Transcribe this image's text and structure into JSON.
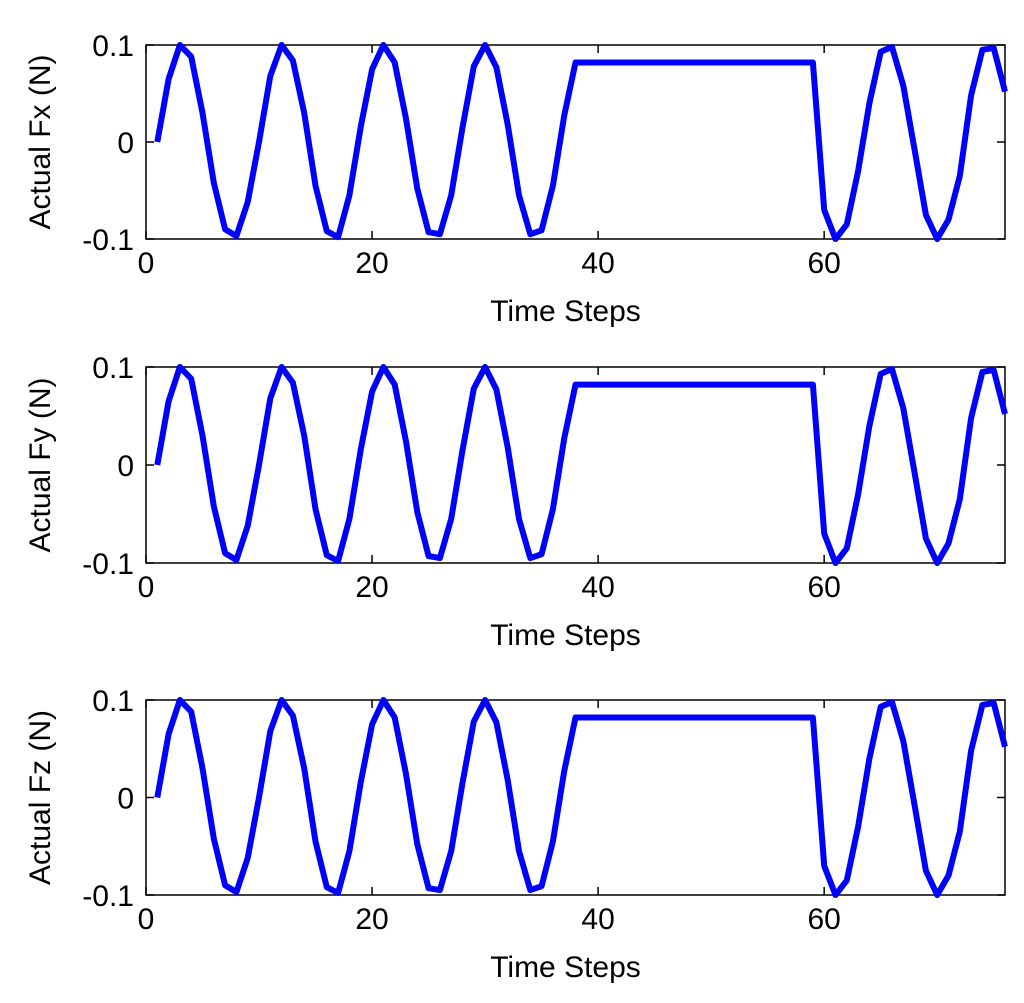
{
  "chart_data": [
    {
      "type": "line",
      "xlabel": "Time Steps",
      "ylabel": "Actual Fx (N)",
      "xlim": [
        0,
        76
      ],
      "ylim": [
        -0.1,
        0.1
      ],
      "xticks": [
        0,
        20,
        40,
        60
      ],
      "xtick_labels": [
        "0",
        "20",
        "40",
        "60"
      ],
      "yticks": [
        -0.1,
        0,
        0.1
      ],
      "ytick_labels": [
        "-0.1",
        "0",
        "0.1"
      ],
      "grid": false,
      "series": [
        {
          "color": "#0000ff",
          "x": [
            1,
            2,
            3,
            4,
            5,
            6,
            7,
            8,
            9,
            10,
            11,
            12,
            13,
            14,
            15,
            16,
            17,
            18,
            19,
            20,
            21,
            22,
            23,
            24,
            25,
            26,
            27,
            28,
            29,
            30,
            31,
            32,
            33,
            34,
            35,
            36,
            37,
            38,
            59,
            60,
            61,
            62,
            63,
            64,
            65,
            66,
            67,
            68,
            69,
            70,
            71,
            72,
            73,
            74,
            75,
            76
          ],
          "y": [
            0,
            0.065,
            0.1,
            0.088,
            0.03,
            -0.042,
            -0.09,
            -0.097,
            -0.062,
            0,
            0.068,
            0.1,
            0.084,
            0.03,
            -0.045,
            -0.092,
            -0.098,
            -0.055,
            0.016,
            0.075,
            0.1,
            0.082,
            0.024,
            -0.048,
            -0.093,
            -0.095,
            -0.055,
            0.015,
            0.078,
            0.1,
            0.077,
            0.018,
            -0.055,
            -0.095,
            -0.091,
            -0.045,
            0.027,
            0.082,
            0.082,
            -0.07,
            -0.1,
            -0.085,
            -0.03,
            0.04,
            0.093,
            0.098,
            0.058,
            -0.008,
            -0.075,
            -0.1,
            -0.08,
            -0.035,
            0.048,
            0.095,
            0.097,
            0.052
          ]
        }
      ]
    },
    {
      "type": "line",
      "xlabel": "Time Steps",
      "ylabel": "Actual Fy (N)",
      "xlim": [
        0,
        76
      ],
      "ylim": [
        -0.1,
        0.1
      ],
      "xticks": [
        0,
        20,
        40,
        60
      ],
      "xtick_labels": [
        "0",
        "20",
        "40",
        "60"
      ],
      "yticks": [
        -0.1,
        0,
        0.1
      ],
      "ytick_labels": [
        "-0.1",
        "0",
        "0.1"
      ],
      "grid": false,
      "series": [
        {
          "color": "#0000ff",
          "x": [
            1,
            2,
            3,
            4,
            5,
            6,
            7,
            8,
            9,
            10,
            11,
            12,
            13,
            14,
            15,
            16,
            17,
            18,
            19,
            20,
            21,
            22,
            23,
            24,
            25,
            26,
            27,
            28,
            29,
            30,
            31,
            32,
            33,
            34,
            35,
            36,
            37,
            38,
            59,
            60,
            61,
            62,
            63,
            64,
            65,
            66,
            67,
            68,
            69,
            70,
            71,
            72,
            73,
            74,
            75,
            76
          ],
          "y": [
            0,
            0.065,
            0.1,
            0.088,
            0.03,
            -0.042,
            -0.09,
            -0.097,
            -0.062,
            0,
            0.068,
            0.1,
            0.084,
            0.03,
            -0.045,
            -0.092,
            -0.098,
            -0.055,
            0.016,
            0.075,
            0.1,
            0.082,
            0.024,
            -0.048,
            -0.093,
            -0.095,
            -0.055,
            0.015,
            0.078,
            0.1,
            0.077,
            0.018,
            -0.055,
            -0.095,
            -0.091,
            -0.045,
            0.027,
            0.082,
            0.082,
            -0.07,
            -0.1,
            -0.085,
            -0.03,
            0.04,
            0.093,
            0.098,
            0.058,
            -0.008,
            -0.075,
            -0.1,
            -0.08,
            -0.035,
            0.048,
            0.095,
            0.097,
            0.052
          ]
        }
      ]
    },
    {
      "type": "line",
      "xlabel": "Time Steps",
      "ylabel": "Actual Fz (N)",
      "xlim": [
        0,
        76
      ],
      "ylim": [
        -0.1,
        0.1
      ],
      "xticks": [
        0,
        20,
        40,
        60
      ],
      "xtick_labels": [
        "0",
        "20",
        "40",
        "60"
      ],
      "yticks": [
        -0.1,
        0,
        0.1
      ],
      "ytick_labels": [
        "-0.1",
        "0",
        "0.1"
      ],
      "grid": false,
      "series": [
        {
          "color": "#0000ff",
          "x": [
            1,
            2,
            3,
            4,
            5,
            6,
            7,
            8,
            9,
            10,
            11,
            12,
            13,
            14,
            15,
            16,
            17,
            18,
            19,
            20,
            21,
            22,
            23,
            24,
            25,
            26,
            27,
            28,
            29,
            30,
            31,
            32,
            33,
            34,
            35,
            36,
            37,
            38,
            59,
            60,
            61,
            62,
            63,
            64,
            65,
            66,
            67,
            68,
            69,
            70,
            71,
            72,
            73,
            74,
            75,
            76
          ],
          "y": [
            0,
            0.065,
            0.1,
            0.088,
            0.03,
            -0.042,
            -0.09,
            -0.097,
            -0.062,
            0,
            0.068,
            0.1,
            0.084,
            0.03,
            -0.045,
            -0.092,
            -0.098,
            -0.055,
            0.016,
            0.075,
            0.1,
            0.082,
            0.024,
            -0.048,
            -0.093,
            -0.095,
            -0.055,
            0.015,
            0.078,
            0.1,
            0.077,
            0.018,
            -0.055,
            -0.095,
            -0.091,
            -0.045,
            0.027,
            0.082,
            0.082,
            -0.07,
            -0.1,
            -0.085,
            -0.03,
            0.04,
            0.093,
            0.098,
            0.058,
            -0.008,
            -0.075,
            -0.1,
            -0.08,
            -0.035,
            0.048,
            0.095,
            0.097,
            0.052
          ]
        }
      ]
    }
  ]
}
